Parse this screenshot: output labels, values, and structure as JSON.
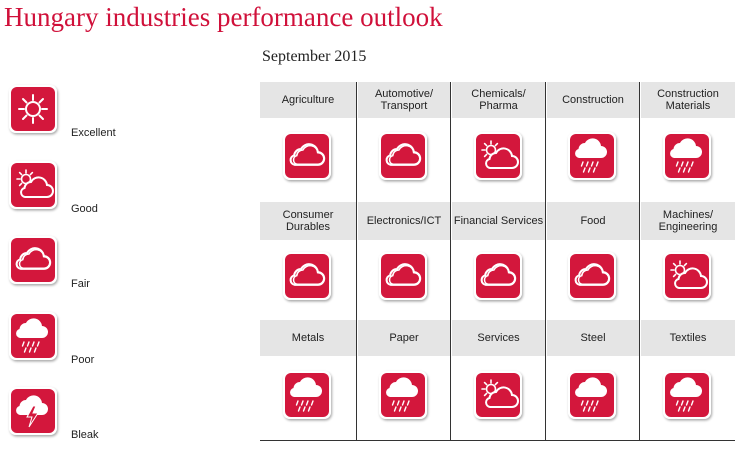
{
  "header": {
    "title": "Hungary industries performance outlook",
    "subtitle": "September 2015"
  },
  "legend": [
    "Excellent",
    "Good",
    "Fair",
    "Poor",
    "Bleak"
  ],
  "grid": {
    "rows": [
      [
        {
          "name": "Agriculture",
          "outlook": "Fair"
        },
        {
          "name": "Automotive/\nTransport",
          "outlook": "Fair"
        },
        {
          "name": "Chemicals/\nPharma",
          "outlook": "Good"
        },
        {
          "name": "Construction",
          "outlook": "Poor"
        },
        {
          "name": "Construction\nMaterials",
          "outlook": "Poor"
        }
      ],
      [
        {
          "name": "Consumer\nDurables",
          "outlook": "Fair"
        },
        {
          "name": "Electronics/ICT",
          "outlook": "Fair"
        },
        {
          "name": "Financial Services",
          "outlook": "Fair"
        },
        {
          "name": "Food",
          "outlook": "Fair"
        },
        {
          "name": "Machines/\nEngineering",
          "outlook": "Good"
        }
      ],
      [
        {
          "name": "Metals",
          "outlook": "Poor"
        },
        {
          "name": "Paper",
          "outlook": "Poor"
        },
        {
          "name": "Services",
          "outlook": "Good"
        },
        {
          "name": "Steel",
          "outlook": "Poor"
        },
        {
          "name": "Textiles",
          "outlook": "Poor"
        }
      ]
    ]
  }
}
